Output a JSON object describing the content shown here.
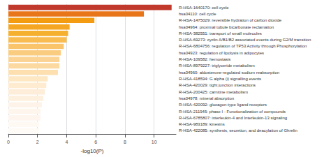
{
  "chart_data": {
    "type": "bar",
    "orientation": "horizontal",
    "categories": [
      "R-HSA-1640170: cell cycle",
      "hsa04110: cell cycle",
      "R-HSA-1475029: reversible hydration of carbon dioxide",
      "hsa04964: proximal tubule bicarbonate reclamation",
      "R-HSA-382551: transport of small molecules",
      "R-HSA-69273: cyclin A/B1/B2 associated events during G2/M transition",
      "R-HSA-6804756: regulation of TP53 Activity through Phosphorylation",
      "hsa04923: regulation of lipolysis in adipocytes",
      "R-HSA-109582: hemostasis",
      "R-HSA-8979227: triglyceride metabolism",
      "hsa04960: aldosterone-regulated sodium reabsorption",
      "R-HSA-418594: G alpha (i) signalling events",
      "R-HSA-420029: tight junction interactions",
      "R-HSA-200425: carnitine metabolism",
      "hsa04978: mineral absorption",
      "R-HSA-420092: glucagon-type ligand receptors",
      "R-HSA-211945: phase I - Functionalization of compounds",
      "R-HSA-6785807: interleukin-4 and Interleukin-13 signaling",
      "R-HSA-983189: kinesins",
      "R-HSA-422085: synthesis, secretion, and deacylation of Ghrelin"
    ],
    "values": [
      11.2,
      9.3,
      5.9,
      4.2,
      4.1,
      4.0,
      3.8,
      3.6,
      3.5,
      3.5,
      3.4,
      2.7,
      2.6,
      2.5,
      2.4,
      2.3,
      2.2,
      2.2,
      2.1,
      2.1
    ],
    "colors": [
      "#c0392b",
      "#e8751a",
      "#f39c12",
      "#f5a623",
      "#f6b030",
      "#f8bc50",
      "#f9c46a",
      "#facc80",
      "#fbd495",
      "#fcd9a0",
      "#fddfb0",
      "#fde8c3",
      "#feebd0",
      "#feedd8",
      "#fef0df",
      "#fef3e8",
      "#fef5ec",
      "#fef6ee",
      "#fef9f3",
      "#fefaf5"
    ],
    "xlabel": "-log10(P)",
    "xlim": [
      0,
      11.5
    ],
    "xticks": [
      0,
      2,
      4,
      6,
      8,
      10
    ],
    "grid": true
  }
}
